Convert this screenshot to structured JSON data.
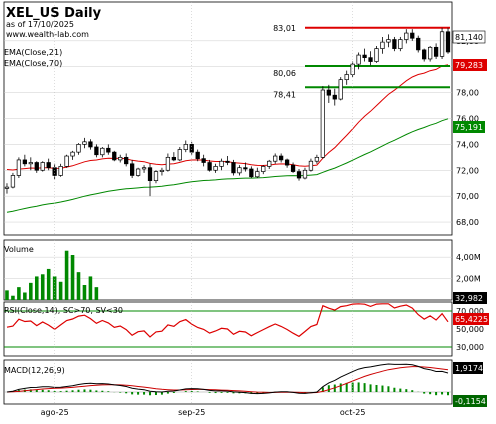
{
  "header": {
    "title": "XEL_US Daily",
    "date_line": "as of 17/10/2025",
    "website": "www.wealth-lab.com",
    "indicator_labels": [
      "EMA(Close,21)",
      "EMA(Close,70)"
    ]
  },
  "colors": {
    "up": "#ffffff",
    "down": "#000000",
    "ema21": "#dd0000",
    "ema70": "#008800",
    "resistance": "#dd0000",
    "support": "#008800",
    "volume": "#008800",
    "rsi": "#dd0000",
    "macd": "#000000",
    "macd_signal": "#cc0000",
    "macd_hist": "#008800",
    "tag_ema21": "#dd0000",
    "tag_ema70": "#008800"
  },
  "chart_data": [
    {
      "type": "candlestick",
      "title": "XEL_US Daily",
      "ylim": [
        67,
        85
      ],
      "y_ticks": [
        "68,00",
        "70,00",
        "72,00",
        "74,00",
        "76,00",
        "78,00",
        "80,00",
        "82,00"
      ],
      "x_ticks": [
        "ago-25",
        "sep-25",
        "oct-25"
      ],
      "ohlc": [
        [
          70.6,
          71.0,
          70.2,
          70.7
        ],
        [
          70.7,
          71.8,
          70.6,
          71.6
        ],
        [
          71.6,
          73.0,
          71.4,
          72.8
        ],
        [
          72.8,
          73.2,
          72.3,
          72.5
        ],
        [
          72.5,
          73.0,
          72.0,
          72.6
        ],
        [
          72.6,
          72.7,
          71.8,
          72.0
        ],
        [
          72.0,
          72.7,
          71.9,
          72.6
        ],
        [
          72.6,
          72.9,
          72.0,
          72.2
        ],
        [
          72.2,
          72.5,
          71.3,
          71.6
        ],
        [
          71.6,
          72.5,
          71.5,
          72.3
        ],
        [
          72.3,
          73.2,
          72.2,
          73.1
        ],
        [
          73.1,
          73.5,
          72.8,
          73.4
        ],
        [
          73.4,
          74.1,
          73.2,
          74.0
        ],
        [
          74.0,
          74.5,
          73.7,
          74.2
        ],
        [
          74.2,
          74.4,
          73.6,
          73.8
        ],
        [
          73.8,
          74.0,
          73.0,
          73.2
        ],
        [
          73.2,
          73.8,
          73.0,
          73.7
        ],
        [
          73.7,
          74.0,
          73.2,
          73.4
        ],
        [
          73.4,
          73.5,
          72.7,
          72.8
        ],
        [
          72.8,
          73.2,
          72.6,
          73.0
        ],
        [
          73.0,
          73.3,
          72.3,
          72.5
        ],
        [
          72.5,
          72.8,
          71.4,
          71.6
        ],
        [
          71.6,
          72.2,
          71.5,
          72.1
        ],
        [
          72.1,
          72.4,
          71.8,
          72.2
        ],
        [
          72.2,
          72.5,
          70.0,
          71.2
        ],
        [
          71.2,
          72.0,
          71.0,
          71.9
        ],
        [
          71.9,
          72.2,
          71.6,
          72.0
        ],
        [
          72.0,
          73.3,
          71.9,
          73.0
        ],
        [
          73.0,
          73.4,
          72.7,
          72.8
        ],
        [
          72.8,
          73.8,
          72.7,
          73.6
        ],
        [
          73.6,
          74.3,
          73.4,
          74.0
        ],
        [
          74.0,
          74.2,
          73.2,
          73.4
        ],
        [
          73.4,
          73.6,
          72.7,
          72.9
        ],
        [
          72.9,
          73.2,
          72.3,
          72.6
        ],
        [
          72.6,
          72.8,
          71.9,
          72.0
        ],
        [
          72.0,
          72.5,
          71.8,
          72.3
        ],
        [
          72.3,
          72.9,
          72.0,
          72.7
        ],
        [
          72.7,
          73.1,
          72.4,
          72.6
        ],
        [
          72.6,
          72.8,
          71.6,
          71.8
        ],
        [
          71.8,
          72.4,
          71.6,
          72.2
        ],
        [
          72.2,
          72.6,
          71.9,
          72.1
        ],
        [
          72.1,
          72.3,
          71.4,
          71.5
        ],
        [
          71.5,
          72.2,
          71.4,
          71.9
        ],
        [
          71.9,
          72.4,
          71.7,
          72.3
        ],
        [
          72.3,
          72.8,
          72.1,
          72.7
        ],
        [
          72.7,
          73.3,
          72.5,
          73.1
        ],
        [
          73.1,
          73.3,
          72.6,
          72.8
        ],
        [
          72.8,
          72.9,
          72.2,
          72.4
        ],
        [
          72.4,
          72.6,
          71.8,
          71.9
        ],
        [
          71.9,
          72.1,
          71.2,
          71.4
        ],
        [
          71.4,
          72.2,
          71.3,
          72.0
        ],
        [
          72.0,
          72.9,
          71.9,
          72.7
        ],
        [
          72.7,
          73.2,
          72.5,
          73.0
        ],
        [
          73.0,
          78.5,
          72.9,
          78.2
        ],
        [
          78.2,
          78.6,
          77.2,
          77.8
        ],
        [
          77.8,
          78.3,
          77.0,
          77.5
        ],
        [
          77.5,
          79.2,
          77.4,
          79.0
        ],
        [
          79.0,
          79.7,
          78.6,
          79.4
        ],
        [
          79.4,
          80.4,
          79.2,
          80.2
        ],
        [
          80.2,
          81.1,
          79.8,
          80.9
        ],
        [
          80.9,
          81.4,
          80.4,
          80.7
        ],
        [
          80.7,
          81.2,
          80.1,
          80.4
        ],
        [
          80.4,
          81.6,
          80.3,
          81.4
        ],
        [
          81.4,
          82.3,
          81.0,
          81.9
        ],
        [
          81.9,
          82.5,
          81.5,
          82.1
        ],
        [
          82.1,
          82.3,
          81.2,
          81.4
        ],
        [
          81.4,
          82.3,
          81.2,
          82.1
        ],
        [
          82.1,
          82.9,
          81.8,
          82.6
        ],
        [
          82.6,
          82.9,
          82.0,
          82.2
        ],
        [
          82.2,
          82.4,
          81.1,
          81.3
        ],
        [
          81.3,
          81.4,
          80.4,
          80.6
        ],
        [
          80.6,
          81.6,
          80.4,
          81.5
        ],
        [
          81.5,
          81.8,
          80.6,
          80.8
        ],
        [
          80.8,
          83.0,
          80.6,
          82.7
        ],
        [
          82.7,
          83.0,
          81.0,
          81.14
        ]
      ],
      "ema21_last": "79,283",
      "ema70_last": "75,191",
      "close_last": "81,140",
      "levels": [
        {
          "value": 83.01,
          "label": "83,01",
          "kind": "resistance"
        },
        {
          "value": 80.06,
          "label": "80,06",
          "kind": "support"
        },
        {
          "value": 78.41,
          "label": "78,41",
          "kind": "support"
        }
      ]
    },
    {
      "type": "bar",
      "title": "Volume",
      "y_ticks": [
        "2,00M",
        "4,00M"
      ],
      "ylim": [
        0,
        5.6
      ],
      "values_m": [
        0.9,
        0.4,
        1.2,
        0.7,
        1.6,
        2.2,
        2.4,
        2.9,
        2.2,
        1.7,
        4.6,
        4.2,
        2.6,
        1.4,
        2.2,
        1.2,
        0,
        0,
        0,
        0,
        0,
        0,
        0,
        0,
        0,
        0,
        0,
        0,
        0,
        0,
        0,
        0,
        0,
        0,
        0,
        0,
        0,
        0,
        0,
        0,
        0,
        0,
        0,
        0,
        0,
        0,
        0,
        0,
        0,
        0,
        0,
        0,
        0,
        0,
        0,
        0,
        0,
        0,
        0,
        0,
        0,
        0,
        0,
        0,
        0,
        0,
        0,
        0,
        0,
        0,
        0,
        0,
        0,
        0,
        0
      ],
      "last_label": "32,982"
    },
    {
      "type": "line",
      "title": "RSI(Close,14), SC>70, SV<30",
      "y_ticks": [
        "30,000",
        "50,000",
        "70,000"
      ],
      "ylim": [
        20,
        80
      ],
      "thresholds": [
        70,
        30
      ],
      "last_label": "65,4225"
    },
    {
      "type": "line",
      "title": "MACD(12,26,9)",
      "macd_last": "1,9174",
      "hist_last": "-0,1154"
    }
  ]
}
